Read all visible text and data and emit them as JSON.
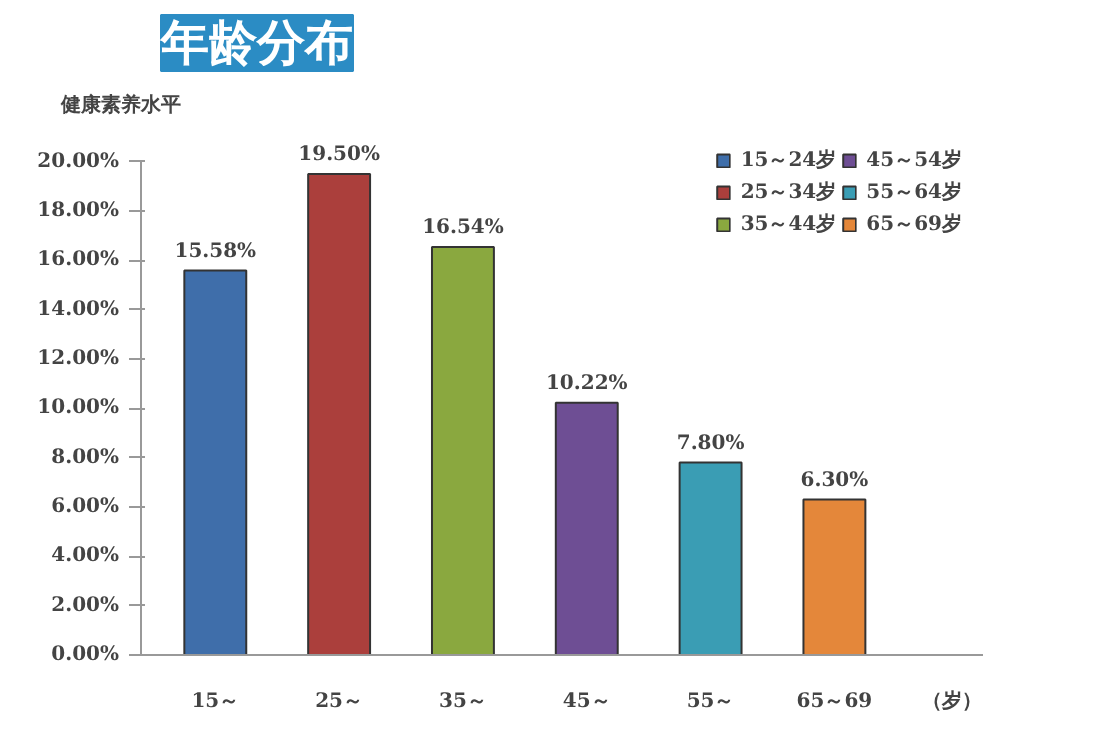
{
  "chart_data": {
    "type": "bar",
    "title": "年龄分布",
    "xlabel": "（岁）",
    "ylabel": "健康素养水平",
    "categories": [
      "15～",
      "25～",
      "35～",
      "45～",
      "55～",
      "65～69"
    ],
    "series": [
      {
        "name": "15～24岁",
        "color": "#3f6eaa",
        "values": [
          15.58,
          null,
          null,
          null,
          null,
          null
        ]
      },
      {
        "name": "25～34岁",
        "color": "#ab3f3c",
        "values": [
          null,
          19.5,
          null,
          null,
          null,
          null
        ]
      },
      {
        "name": "35～44岁",
        "color": "#8aa83f",
        "values": [
          null,
          null,
          16.54,
          null,
          null,
          null
        ]
      },
      {
        "name": "45～54岁",
        "color": "#6e4e94",
        "values": [
          null,
          null,
          null,
          10.22,
          null,
          null
        ]
      },
      {
        "name": "55～64岁",
        "color": "#3a9db4",
        "values": [
          null,
          null,
          null,
          null,
          7.8,
          null
        ]
      },
      {
        "name": "65～69岁",
        "color": "#e4873a",
        "values": [
          null,
          null,
          null,
          null,
          null,
          6.3
        ]
      }
    ],
    "value_labels": [
      "15.58%",
      "19.50%",
      "16.54%",
      "10.22%",
      "7.80%",
      "6.30%"
    ],
    "ylim": [
      0,
      20
    ],
    "yticks": [
      {
        "value": 0,
        "label": "0.00%"
      },
      {
        "value": 2,
        "label": "2.00%"
      },
      {
        "value": 4,
        "label": "4.00%"
      },
      {
        "value": 6,
        "label": "6.00%"
      },
      {
        "value": 8,
        "label": "8.00%"
      },
      {
        "value": 10,
        "label": "10.00%"
      },
      {
        "value": 12,
        "label": "12.00%"
      },
      {
        "value": 14,
        "label": "14.00%"
      },
      {
        "value": 16,
        "label": "16.00%"
      },
      {
        "value": 18,
        "label": "18.00%"
      },
      {
        "value": 20,
        "label": "20.00%"
      }
    ],
    "grid": false,
    "legend": "top right"
  }
}
